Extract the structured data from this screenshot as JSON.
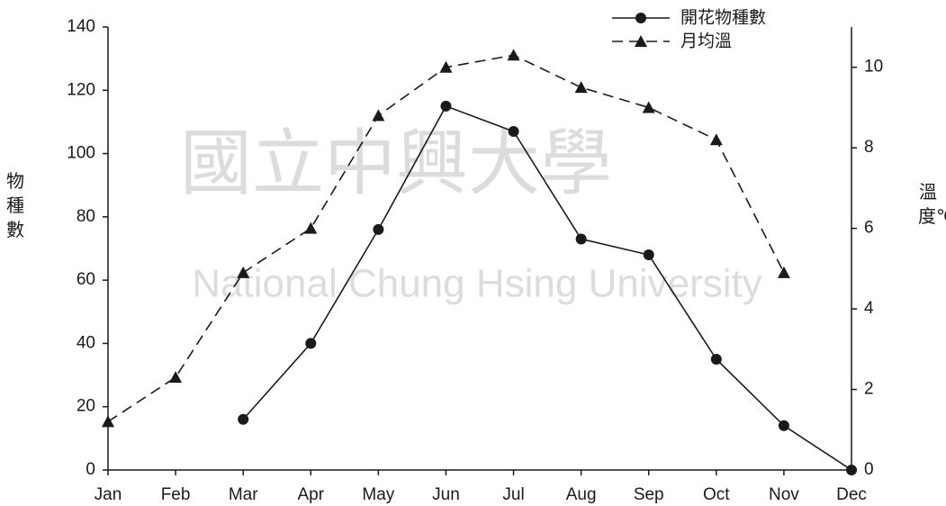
{
  "chart_data": {
    "type": "line",
    "watermark": {
      "name": "國立中興大學",
      "name_en": "National Chung Hsing University"
    },
    "y_label": "物種數",
    "y2_label": "溫度℃",
    "categories": [
      "Jan",
      "Feb",
      "Mar",
      "Apr",
      "May",
      "Jun",
      "Jul",
      "Aug",
      "Sep",
      "Oct",
      "Nov",
      "Dec"
    ],
    "series": [
      {
        "name": "開花物種數",
        "color": "#1a1a1a",
        "marker": "circle",
        "dashed": false,
        "axis": "y",
        "values": [
          null,
          null,
          16,
          40,
          76,
          115,
          107,
          73,
          68,
          35,
          14,
          0
        ]
      },
      {
        "name": "月均溫",
        "color": "#1a1a1a",
        "marker": "triangle",
        "dashed": true,
        "axis": "y2",
        "values": [
          1.2,
          2.3,
          4.9,
          6.0,
          8.8,
          10.0,
          10.3,
          9.5,
          9.0,
          8.2,
          4.9,
          null
        ]
      }
    ],
    "ylim": [
      0,
      140
    ],
    "yticks": [
      0,
      20,
      40,
      60,
      80,
      100,
      120,
      140
    ],
    "y2lim": [
      0,
      11
    ],
    "y2ticks": [
      0,
      2,
      4,
      6,
      8,
      10
    ],
    "legend": "top-right",
    "grid": false
  }
}
